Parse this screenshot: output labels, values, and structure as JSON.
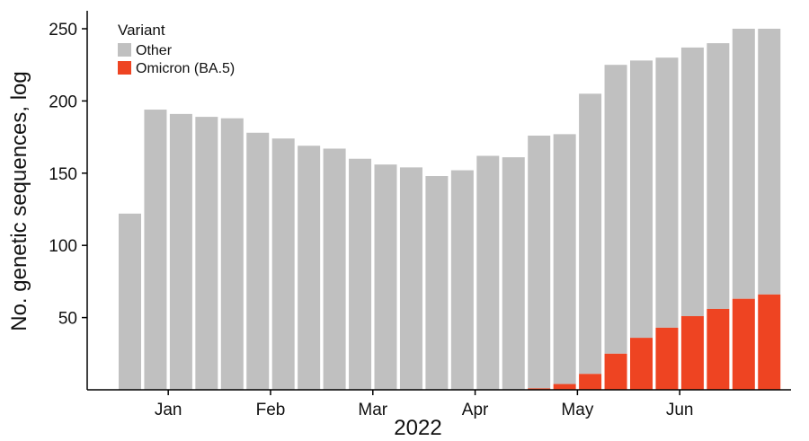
{
  "chart_data": {
    "type": "bar",
    "stacked": true,
    "xlabel": "2022",
    "ylabel": "No. genetic sequences, log",
    "ylim": [
      0,
      250
    ],
    "yticks": [
      50,
      100,
      150,
      200,
      250
    ],
    "x_tick_labels": [
      {
        "label": "Jan",
        "bar_index": 1.5
      },
      {
        "label": "Feb",
        "bar_index": 5.5
      },
      {
        "label": "Mar",
        "bar_index": 9.5
      },
      {
        "label": "Apr",
        "bar_index": 13.5
      },
      {
        "label": "May",
        "bar_index": 17.5
      },
      {
        "label": "Jun",
        "bar_index": 21.5
      }
    ],
    "legend": {
      "title": "Variant",
      "position": "top-left"
    },
    "series": [
      {
        "name": "Omicron (BA.5)",
        "color": "#ee4422",
        "values": [
          0,
          0,
          0,
          0,
          0,
          0,
          0,
          0,
          0,
          0,
          0,
          0,
          0,
          0,
          0,
          0,
          1,
          4,
          11,
          25,
          36,
          43,
          51,
          56,
          63,
          66
        ]
      },
      {
        "name": "Other",
        "color": "#c0c0c0",
        "values": [
          122,
          194,
          191,
          189,
          188,
          178,
          174,
          169,
          167,
          160,
          156,
          154,
          148,
          152,
          162,
          161,
          175,
          173,
          194,
          200,
          192,
          187,
          186,
          184,
          187,
          184
        ]
      }
    ]
  }
}
